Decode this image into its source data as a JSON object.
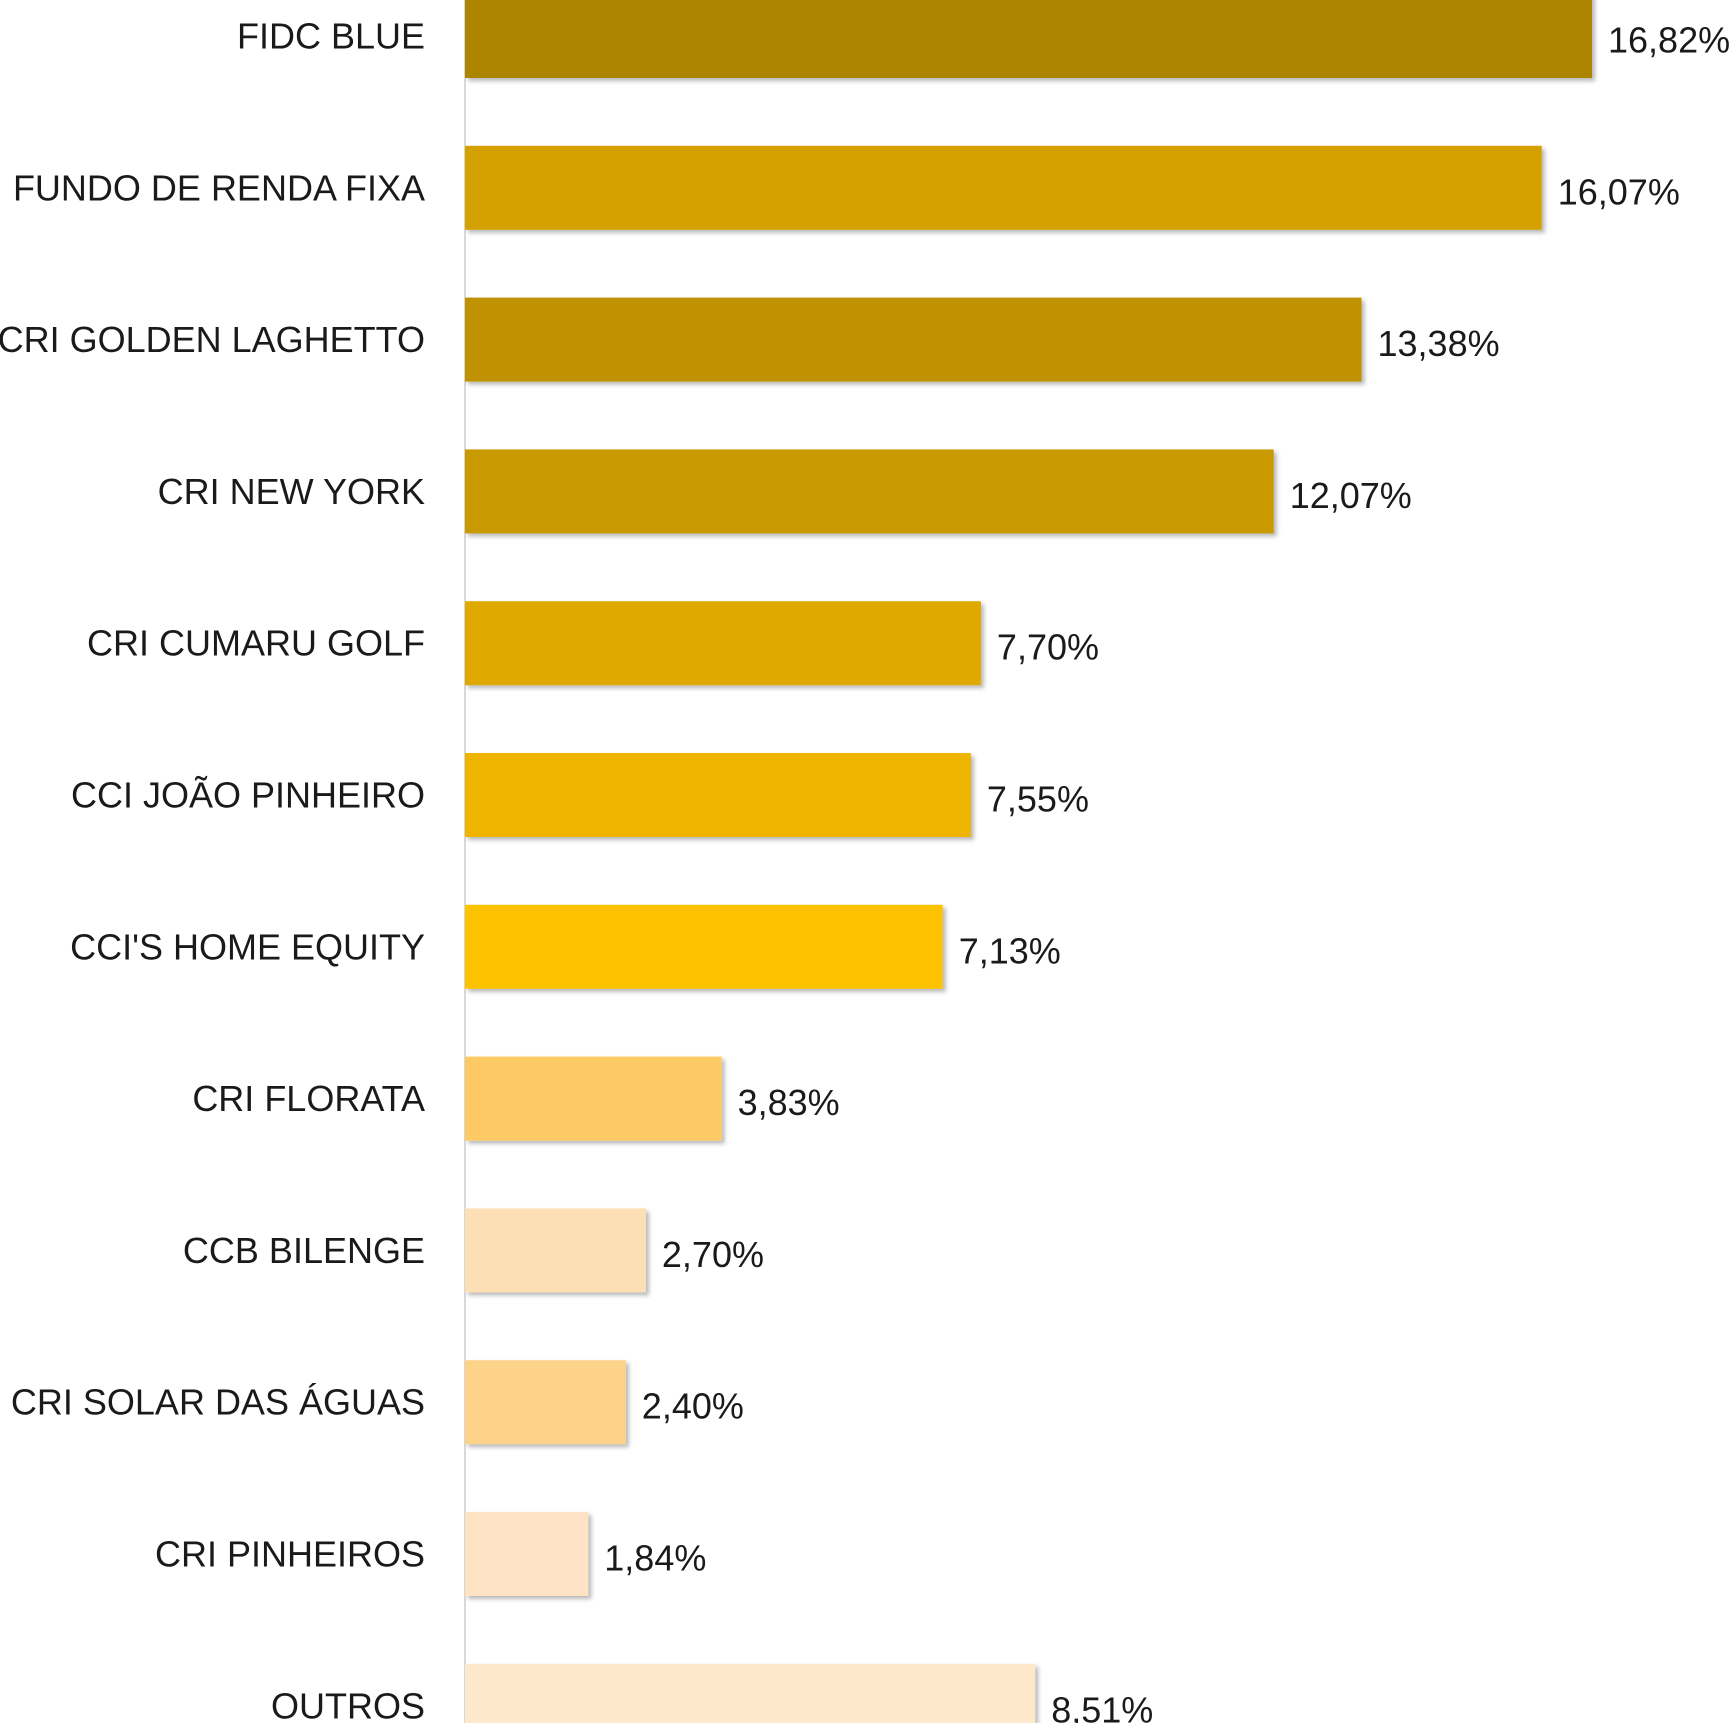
{
  "chart_data": {
    "type": "bar",
    "orientation": "horizontal",
    "categories": [
      "FIDC BLUE",
      "FUNDO DE RENDA FIXA",
      "CRI GOLDEN LAGHETTO",
      "CRI NEW YORK",
      "CRI CUMARU GOLF",
      "CCI JOÃO PINHEIRO",
      "CCI'S HOME EQUITY",
      "CRI FLORATA",
      "CCB BILENGE",
      "CRI SOLAR DAS ÁGUAS",
      "CRI PINHEIROS",
      "OUTROS"
    ],
    "values": [
      16.82,
      16.07,
      13.38,
      12.07,
      7.7,
      7.55,
      7.13,
      3.83,
      2.7,
      2.4,
      1.84,
      8.51
    ],
    "value_labels": [
      "16,82%",
      "16,07%",
      "13,38%",
      "12,07%",
      "7,70%",
      "7,55%",
      "7,13%",
      "3,83%",
      "2,70%",
      "2,40%",
      "1,84%",
      "8,51%"
    ],
    "colors": [
      "#AD8400",
      "#D4A100",
      "#C09100",
      "#C99900",
      "#E0A900",
      "#EEB400",
      "#FDC300",
      "#FDC965",
      "#FDDFB6",
      "#FDD38A",
      "#FDE3C3",
      "#FDE8CB"
    ],
    "axis_color": "#d9d9d9",
    "xlim": [
      0,
      16.82
    ],
    "title": "",
    "xlabel": "",
    "ylabel": "",
    "grid": false,
    "legend": "none"
  }
}
